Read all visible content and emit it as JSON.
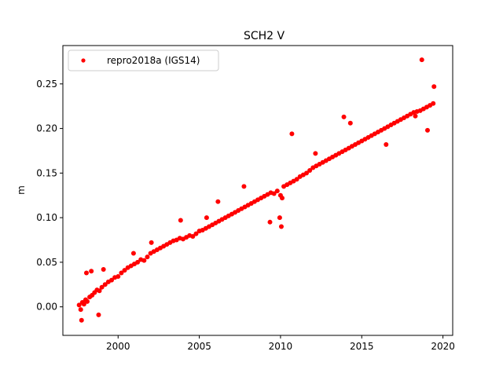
{
  "chart_data": {
    "type": "scatter",
    "title": "SCH2 V",
    "xlabel": "",
    "ylabel": "m",
    "xlim": [
      1996.6,
      2020.6
    ],
    "ylim": [
      -0.032,
      0.293
    ],
    "xticks": [
      2000,
      2005,
      2010,
      2015,
      2020
    ],
    "xtick_labels": [
      "2000",
      "2005",
      "2010",
      "2015",
      "2020"
    ],
    "yticks": [
      0.0,
      0.05,
      0.1,
      0.15,
      0.2,
      0.25
    ],
    "ytick_labels": [
      "0.00",
      "0.05",
      "0.10",
      "0.15",
      "0.20",
      "0.25"
    ],
    "grid": false,
    "legend_position": "top-left",
    "series": [
      {
        "name": "repro2018a (IGS14)",
        "color": "#ff0000",
        "marker": "circle",
        "x": [
          1997.6,
          1997.7,
          1997.8,
          1997.9,
          1998.0,
          1998.1,
          1998.25,
          1998.4,
          1998.55,
          1998.7,
          1998.85,
          1999.0,
          1999.2,
          1999.4,
          1999.6,
          1999.8,
          2000.0,
          2000.2,
          2000.4,
          2000.6,
          2000.8,
          2001.0,
          2001.2,
          2001.4,
          2001.6,
          2001.8,
          2002.0,
          2002.2,
          2002.4,
          2002.6,
          2002.8,
          2003.0,
          2003.2,
          2003.4,
          2003.6,
          2003.8,
          2004.0,
          2004.2,
          2004.4,
          2004.6,
          2004.8,
          2005.0,
          2005.2,
          2005.4,
          2005.6,
          2005.8,
          2006.0,
          2006.2,
          2006.4,
          2006.6,
          2006.8,
          2007.0,
          2007.2,
          2007.4,
          2007.6,
          2007.8,
          2008.0,
          2008.2,
          2008.4,
          2008.6,
          2008.8,
          2009.0,
          2009.2,
          2009.4,
          2009.6,
          2009.8,
          2010.0,
          2010.1,
          2010.2,
          2010.4,
          2010.6,
          2010.8,
          2011.0,
          2011.2,
          2011.4,
          2011.6,
          2011.8,
          2012.0,
          2012.2,
          2012.4,
          2012.6,
          2012.8,
          2013.0,
          2013.2,
          2013.4,
          2013.6,
          2013.8,
          2014.0,
          2014.2,
          2014.4,
          2014.6,
          2014.8,
          2015.0,
          2015.2,
          2015.4,
          2015.6,
          2015.8,
          2016.0,
          2016.2,
          2016.4,
          2016.6,
          2016.8,
          2017.0,
          2017.2,
          2017.4,
          2017.6,
          2017.8,
          2018.0,
          2018.2,
          2018.4,
          2018.6,
          2018.8,
          2019.0,
          2019.2,
          2019.4,
          1997.75,
          1998.05,
          1998.35,
          1998.8,
          1999.1,
          2000.95,
          2002.05,
          2003.85,
          2005.45,
          2006.15,
          2007.75,
          2009.35,
          2009.95,
          2010.05,
          2010.7,
          2012.15,
          2013.9,
          2014.3,
          2016.5,
          2018.3,
          2018.7,
          2019.05,
          2019.45
        ],
        "y": [
          0.002,
          -0.003,
          0.005,
          0.003,
          0.008,
          0.006,
          0.011,
          0.013,
          0.016,
          0.019,
          0.018,
          0.022,
          0.025,
          0.028,
          0.03,
          0.033,
          0.034,
          0.038,
          0.041,
          0.044,
          0.046,
          0.048,
          0.05,
          0.053,
          0.052,
          0.056,
          0.06,
          0.062,
          0.064,
          0.066,
          0.068,
          0.07,
          0.072,
          0.074,
          0.075,
          0.077,
          0.076,
          0.078,
          0.08,
          0.079,
          0.082,
          0.085,
          0.086,
          0.088,
          0.09,
          0.092,
          0.094,
          0.096,
          0.098,
          0.1,
          0.102,
          0.104,
          0.106,
          0.108,
          0.11,
          0.112,
          0.114,
          0.116,
          0.118,
          0.12,
          0.122,
          0.124,
          0.126,
          0.128,
          0.127,
          0.13,
          0.125,
          0.122,
          0.135,
          0.137,
          0.139,
          0.141,
          0.143,
          0.146,
          0.148,
          0.15,
          0.153,
          0.156,
          0.158,
          0.16,
          0.162,
          0.164,
          0.166,
          0.168,
          0.17,
          0.172,
          0.174,
          0.176,
          0.178,
          0.18,
          0.182,
          0.184,
          0.186,
          0.188,
          0.19,
          0.192,
          0.194,
          0.196,
          0.198,
          0.2,
          0.202,
          0.204,
          0.206,
          0.208,
          0.21,
          0.212,
          0.214,
          0.216,
          0.218,
          0.219,
          0.22,
          0.222,
          0.224,
          0.226,
          0.228,
          -0.015,
          0.038,
          0.04,
          -0.009,
          0.042,
          0.06,
          0.072,
          0.097,
          0.1,
          0.118,
          0.135,
          0.095,
          0.1,
          0.09,
          0.194,
          0.172,
          0.213,
          0.206,
          0.182,
          0.214,
          0.277,
          0.198,
          0.247
        ]
      }
    ]
  }
}
